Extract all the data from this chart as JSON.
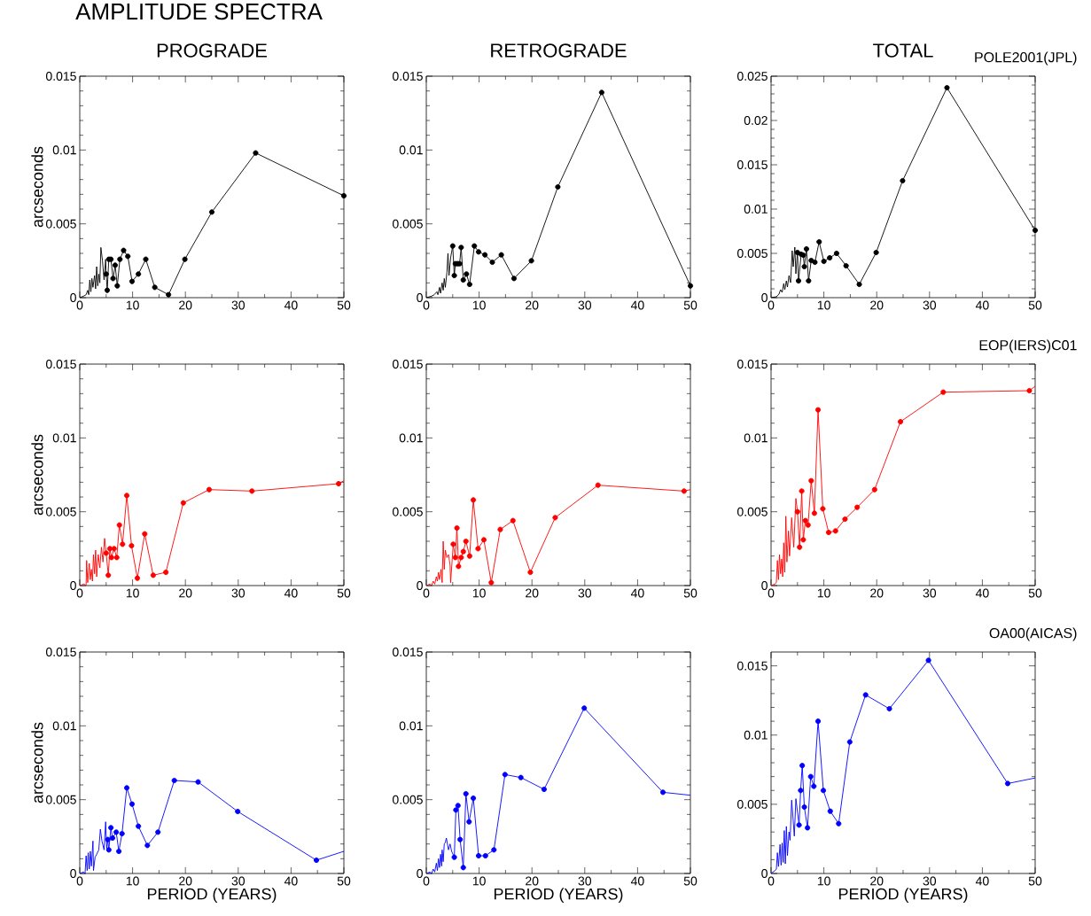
{
  "chart_data": [
    {
      "type": "line",
      "title": "AMPLITUDE SPECTRA",
      "subtitle": "PROGRADE",
      "ylabel": "arcseconds",
      "marker": "circle",
      "xlim": [
        0,
        50
      ],
      "ylim": [
        0,
        0.015
      ],
      "xticks": [
        0,
        10,
        20,
        30,
        40,
        50
      ],
      "yticks": [
        0,
        0.005,
        0.01,
        0.015
      ],
      "series": [
        {
          "color": "#000000",
          "marker": "none",
          "x": [
            0,
            0.7,
            1.2,
            1.5,
            1.7,
            1.9,
            2.1,
            2.3,
            2.5,
            2.8,
            3.0,
            3.2,
            3.4,
            3.6,
            3.8,
            4.0,
            4.3,
            4.6,
            4.9,
            5.0
          ],
          "values": [
            0,
            0.0001,
            0.0002,
            0.0005,
            0.0002,
            0.0012,
            0.0004,
            0.0013,
            0.0007,
            0.0015,
            0.0006,
            0.0021,
            0.0008,
            0.0016,
            0.001,
            0.0034,
            0.0025,
            0.0012,
            0.0026,
            0.0016
          ]
        },
        {
          "color": "#000000",
          "x": [
            5.0,
            5.2,
            5.5,
            5.9,
            6.3,
            6.7,
            7.1,
            7.6,
            8.3,
            9.1,
            9.9,
            11.1,
            12.5,
            14.2,
            16.8,
            19.9,
            25.0,
            33.3,
            50
          ],
          "values": [
            0.0016,
            0.0005,
            0.0026,
            0.0026,
            0.0013,
            0.0022,
            0.0008,
            0.0026,
            0.0032,
            0.0028,
            0.0011,
            0.0016,
            0.0026,
            0.0007,
            0.0002,
            0.0026,
            0.0058,
            0.0098,
            0.0069
          ]
        }
      ]
    },
    {
      "type": "line",
      "subtitle": "RETROGRADE",
      "marker": "circle",
      "xlim": [
        0,
        50
      ],
      "ylim": [
        0,
        0.015
      ],
      "xticks": [
        0,
        10,
        20,
        30,
        40,
        50
      ],
      "yticks": [
        0,
        0.005,
        0.01,
        0.015
      ],
      "series": [
        {
          "color": "#000000",
          "marker": "none",
          "x": [
            0,
            1,
            1.5,
            2,
            2.2,
            2.5,
            2.7,
            3.0,
            3.2,
            3.4,
            3.6,
            3.9,
            4.1,
            4.3,
            4.6,
            5.0
          ],
          "values": [
            0,
            0.0001,
            0.0002,
            0.0004,
            0.0002,
            0.0007,
            0.0003,
            0.001,
            0.0005,
            0.0013,
            0.0007,
            0.0017,
            0.003,
            0.0015,
            0.0027,
            0.0035
          ]
        },
        {
          "color": "#000000",
          "x": [
            5.0,
            5.3,
            5.5,
            5.9,
            6.3,
            6.6,
            7.0,
            7.6,
            8.2,
            9.1,
            9.9,
            11.1,
            12.5,
            14.2,
            16.6,
            19.9,
            24.9,
            33.2,
            50
          ],
          "values": [
            0.0035,
            0.0015,
            0.0023,
            0.0023,
            0.0023,
            0.0034,
            0.0012,
            0.0016,
            0.0009,
            0.0035,
            0.0031,
            0.0029,
            0.0024,
            0.0029,
            0.0013,
            0.0025,
            0.0075,
            0.0139,
            0.0008
          ]
        }
      ]
    },
    {
      "type": "line",
      "subtitle": "TOTAL",
      "annotations": [
        "POLE2001(JPL)"
      ],
      "marker": "circle",
      "xlim": [
        0,
        50
      ],
      "ylim": [
        0,
        0.025
      ],
      "xticks": [
        0,
        10,
        20,
        30,
        40,
        50
      ],
      "yticks": [
        0,
        0.005,
        0.01,
        0.015,
        0.02,
        0.025
      ],
      "series": [
        {
          "color": "#000000",
          "marker": "none",
          "x": [
            0,
            1,
            1.5,
            1.8,
            2.1,
            2.4,
            2.6,
            2.9,
            3.1,
            3.4,
            3.7,
            4.0,
            4.2,
            4.5,
            4.7,
            5.0
          ],
          "values": [
            0,
            0.0001,
            0.0004,
            0.0009,
            0.0006,
            0.0016,
            0.0009,
            0.0019,
            0.0012,
            0.0025,
            0.0017,
            0.0053,
            0.0035,
            0.0057,
            0.0027,
            0.0051
          ]
        },
        {
          "color": "#000000",
          "x": [
            5.0,
            5.2,
            5.7,
            6.1,
            6.3,
            6.7,
            7.1,
            7.6,
            8.3,
            9.1,
            10.0,
            11.1,
            12.4,
            14.2,
            16.7,
            19.9,
            24.9,
            33.3,
            50
          ],
          "values": [
            0.0051,
            0.0019,
            0.0049,
            0.0048,
            0.0035,
            0.0055,
            0.0019,
            0.0042,
            0.004,
            0.0063,
            0.0041,
            0.0045,
            0.005,
            0.0036,
            0.0015,
            0.0051,
            0.0132,
            0.0237,
            0.0076
          ]
        }
      ]
    },
    {
      "type": "line",
      "ylabel": "arcseconds",
      "marker": "circle",
      "xlim": [
        0,
        50
      ],
      "ylim": [
        0,
        0.015
      ],
      "xticks": [
        0,
        10,
        20,
        30,
        40,
        50
      ],
      "yticks": [
        0,
        0.005,
        0.01,
        0.015
      ],
      "series": [
        {
          "color": "#ff0000",
          "marker": "none",
          "x": [
            0,
            0.8,
            1.2,
            1.3,
            1.5,
            1.8,
            2.0,
            2.2,
            2.4,
            2.6,
            2.8,
            3.0,
            3.2,
            3.5,
            3.8,
            4.1,
            4.4,
            4.7,
            5.0
          ],
          "values": [
            0,
            0.0001,
            0,
            0.0017,
            0.0002,
            0.0015,
            0.0004,
            0.0011,
            0.0003,
            0.0021,
            0.0008,
            0.0024,
            0.0006,
            0.0021,
            0.0012,
            0.0026,
            0.0016,
            0.0032,
            0.0022
          ]
        },
        {
          "color": "#ff0000",
          "x": [
            5.0,
            5.4,
            5.7,
            6.0,
            6.5,
            7.0,
            7.5,
            8.1,
            8.9,
            9.8,
            10.9,
            12.3,
            13.9,
            16.3,
            19.6,
            24.5,
            32.6,
            49.0
          ],
          "values": [
            0.0022,
            0.0007,
            0.0025,
            0.0019,
            0.0025,
            0.0019,
            0.0041,
            0.0028,
            0.0061,
            0.0027,
            0.0005,
            0.0035,
            0.0007,
            0.0009,
            0.0056,
            0.0065,
            0.0064,
            0.0069
          ]
        },
        {
          "color": "#ff0000",
          "marker": "none",
          "x": [
            49.0,
            50
          ],
          "values": [
            0.0069,
            0.0071
          ]
        }
      ]
    },
    {
      "type": "line",
      "marker": "circle",
      "xlim": [
        0,
        50
      ],
      "ylim": [
        0,
        0.015
      ],
      "xticks": [
        0,
        10,
        20,
        30,
        40,
        50
      ],
      "yticks": [
        0,
        0.005,
        0.01,
        0.015
      ],
      "series": [
        {
          "color": "#ff0000",
          "marker": "none",
          "x": [
            0,
            0.7,
            1,
            1.3,
            1.6,
            1.9,
            2.1,
            2.3,
            2.5,
            2.8,
            3.0,
            3.2,
            3.4,
            3.6,
            3.9,
            4.2,
            4.5,
            4.6,
            5.1
          ],
          "values": [
            0,
            0.0001,
            0,
            0.0003,
            0.0001,
            0.0006,
            0.0003,
            0.0009,
            0.0004,
            0.0011,
            0.0002,
            0.003,
            0.0011,
            0.0024,
            0.0019,
            0.0021,
            0.0014,
            0.0002,
            0.0028
          ]
        },
        {
          "color": "#ff0000",
          "x": [
            5.1,
            5.5,
            5.8,
            6.1,
            6.6,
            7.0,
            7.5,
            8.2,
            8.9,
            9.8,
            10.9,
            12.3,
            14.0,
            16.4,
            19.7,
            24.4,
            32.5,
            48.8
          ],
          "values": [
            0.0028,
            0.0019,
            0.0039,
            0.0013,
            0.0019,
            0.0023,
            0.003,
            0.002,
            0.0058,
            0.0025,
            0.0031,
            0.0002,
            0.0038,
            0.0044,
            0.0009,
            0.0046,
            0.0068,
            0.0064
          ]
        },
        {
          "color": "#ff0000",
          "marker": "none",
          "x": [
            48.8,
            50
          ],
          "values": [
            0.0064,
            0.0065
          ]
        }
      ]
    },
    {
      "type": "line",
      "annotations": [
        "EOP(IERS)C01"
      ],
      "marker": "circle",
      "xlim": [
        0,
        50
      ],
      "ylim": [
        0,
        0.015
      ],
      "xticks": [
        0,
        10,
        20,
        30,
        40,
        50
      ],
      "yticks": [
        0,
        0.005,
        0.01,
        0.015
      ],
      "series": [
        {
          "color": "#ff0000",
          "marker": "none",
          "x": [
            0,
            0.7,
            1.0,
            1.2,
            1.4,
            1.6,
            1.8,
            2.0,
            2.2,
            2.4,
            2.6,
            2.8,
            3.0,
            3.3,
            3.5,
            3.9,
            4.3,
            4.7,
            5.0
          ],
          "values": [
            0,
            0.0001,
            0.0002,
            0.0017,
            0.0004,
            0.0021,
            0.0008,
            0.0018,
            0.0006,
            0.0029,
            0.0009,
            0.0047,
            0.0016,
            0.0037,
            0.002,
            0.0046,
            0.0026,
            0.0059,
            0.005
          ]
        },
        {
          "color": "#ff0000",
          "x": [
            5.0,
            5.4,
            5.8,
            6.1,
            6.5,
            7.0,
            7.6,
            8.2,
            8.9,
            9.8,
            10.9,
            12.2,
            14.0,
            16.3,
            19.6,
            24.5,
            32.6,
            48.9
          ],
          "values": [
            0.005,
            0.0026,
            0.0064,
            0.0031,
            0.0044,
            0.0041,
            0.0071,
            0.0049,
            0.0119,
            0.0052,
            0.0036,
            0.0037,
            0.0045,
            0.0053,
            0.0065,
            0.0111,
            0.0131,
            0.0132
          ]
        },
        {
          "color": "#ff0000",
          "marker": "none",
          "x": [
            48.9,
            50
          ],
          "values": [
            0.0132,
            0.0135
          ]
        }
      ]
    },
    {
      "type": "line",
      "ylabel": "arcseconds",
      "xlabel": "PERIOD (YEARS)",
      "marker": "circle",
      "xlim": [
        0,
        50
      ],
      "ylim": [
        0,
        0.015
      ],
      "xticks": [
        0,
        10,
        20,
        30,
        40,
        50
      ],
      "yticks": [
        0,
        0.005,
        0.01,
        0.015
      ],
      "series": [
        {
          "color": "#0000ff",
          "marker": "none",
          "x": [
            0,
            0.7,
            1,
            1.2,
            1.4,
            1.6,
            1.8,
            2.0,
            2.2,
            2.5,
            2.6,
            2.9,
            3.2,
            3.6,
            3.9,
            4.2,
            4.6,
            4.9,
            5.1,
            5.3
          ],
          "values": [
            0,
            0.0001,
            0,
            0.0012,
            0.0002,
            0.0014,
            0.0003,
            0.0015,
            0.0005,
            0.0022,
            0.0002,
            0.0011,
            0.0013,
            0.0016,
            0.003,
            0.0022,
            0.0016,
            0.0035,
            0.0017,
            0.0023
          ]
        },
        {
          "color": "#0000ff",
          "x": [
            5.3,
            5.5,
            5.9,
            6.2,
            6.9,
            7.4,
            8.0,
            8.9,
            9.9,
            11.1,
            12.8,
            14.8,
            17.9,
            22.4,
            29.9,
            44.8
          ],
          "values": [
            0.0023,
            0.0016,
            0.0031,
            0.0024,
            0.0028,
            0.0015,
            0.0027,
            0.0058,
            0.0047,
            0.0032,
            0.0019,
            0.0028,
            0.0063,
            0.0062,
            0.0042,
            0.0009
          ]
        },
        {
          "color": "#0000ff",
          "marker": "none",
          "x": [
            44.8,
            50
          ],
          "values": [
            0.0009,
            0.0015
          ]
        }
      ]
    },
    {
      "type": "line",
      "xlabel": "PERIOD (YEARS)",
      "marker": "circle",
      "xlim": [
        0,
        50
      ],
      "ylim": [
        0,
        0.015
      ],
      "xticks": [
        0,
        10,
        20,
        30,
        40,
        50
      ],
      "yticks": [
        0,
        0.005,
        0.01,
        0.015
      ],
      "series": [
        {
          "color": "#0000ff",
          "marker": "none",
          "x": [
            0,
            0.7,
            1,
            1.3,
            1.6,
            1.9,
            2.1,
            2.3,
            2.5,
            2.7,
            2.9,
            3.0,
            3.2,
            3.4,
            3.6,
            3.8,
            4.2,
            4.5,
            4.8,
            5.3
          ],
          "values": [
            0,
            0.0001,
            0,
            0.0003,
            0.0001,
            0.0007,
            0.0002,
            0.001,
            0.0004,
            0.0013,
            0.0005,
            0.0016,
            0.0008,
            0.002,
            0.0021,
            0.0024,
            0.0016,
            0.002,
            0.0015,
            0.0011
          ]
        },
        {
          "color": "#0000ff",
          "x": [
            5.3,
            5.6,
            6.0,
            6.4,
            7.0,
            7.5,
            8.1,
            8.9,
            9.9,
            11.2,
            12.8,
            14.9,
            17.9,
            22.3,
            29.9,
            44.8
          ],
          "values": [
            0.0011,
            0.0043,
            0.0046,
            0.0023,
            0.0004,
            0.0054,
            0.0035,
            0.0051,
            0.0012,
            0.0012,
            0.0016,
            0.0067,
            0.0065,
            0.0057,
            0.0112,
            0.0055
          ]
        },
        {
          "color": "#0000ff",
          "marker": "none",
          "x": [
            44.8,
            50
          ],
          "values": [
            0.0055,
            0.0053
          ]
        }
      ]
    },
    {
      "type": "line",
      "xlabel": "PERIOD (YEARS)",
      "annotations": [
        "OA00(AICAS)"
      ],
      "marker": "circle",
      "xlim": [
        0,
        50
      ],
      "ylim": [
        0,
        0.016
      ],
      "xticks": [
        0,
        10,
        20,
        30,
        40,
        50
      ],
      "yticks": [
        0,
        0.005,
        0.01,
        0.015
      ],
      "series": [
        {
          "color": "#0000ff",
          "marker": "none",
          "x": [
            0,
            0.7,
            1,
            1.2,
            1.4,
            1.7,
            1.9,
            2.1,
            2.3,
            2.5,
            2.7,
            2.9,
            3.1,
            3.4,
            3.6,
            3.9,
            4.4,
            4.7,
            5.3
          ],
          "values": [
            0,
            0.0002,
            0.0003,
            0.0015,
            0.0005,
            0.0021,
            0.0006,
            0.0022,
            0.0008,
            0.0031,
            0.0007,
            0.0034,
            0.0013,
            0.003,
            0.0024,
            0.0053,
            0.0027,
            0.0054,
            0.0035
          ]
        },
        {
          "color": "#0000ff",
          "x": [
            5.3,
            5.6,
            5.9,
            6.3,
            6.9,
            7.5,
            8.1,
            8.9,
            9.9,
            11.2,
            12.8,
            14.9,
            17.9,
            22.4,
            29.8,
            44.8
          ],
          "values": [
            0.0035,
            0.006,
            0.0078,
            0.0048,
            0.0033,
            0.007,
            0.0063,
            0.011,
            0.006,
            0.0045,
            0.0036,
            0.0095,
            0.0129,
            0.0119,
            0.0154,
            0.0065
          ]
        },
        {
          "color": "#0000ff",
          "marker": "none",
          "x": [
            44.8,
            50
          ],
          "values": [
            0.0065,
            0.0069
          ]
        }
      ]
    }
  ]
}
